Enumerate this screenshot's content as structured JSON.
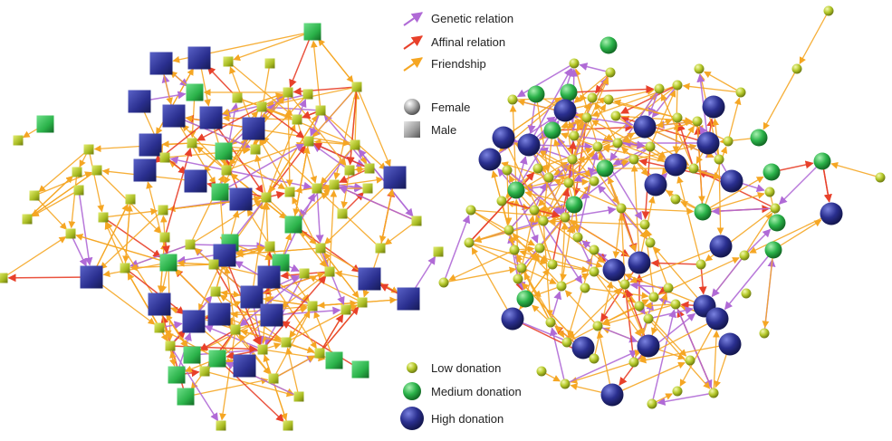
{
  "legend": {
    "edges": [
      {
        "label": "Genetic relation",
        "color": "#b06ad6"
      },
      {
        "label": "Affinal relation",
        "color": "#e8402a"
      },
      {
        "label": "Friendship",
        "color": "#f5a623"
      }
    ],
    "shapes": [
      {
        "label": "Female",
        "icon": "sphere-icon"
      },
      {
        "label": "Male",
        "icon": "cube-icon"
      }
    ],
    "donations": [
      {
        "label": "Low donation",
        "color": "#b5c92a"
      },
      {
        "label": "Medium donation",
        "color": "#2bb34a"
      },
      {
        "label": "High donation",
        "color": "#2a2f8f"
      }
    ]
  },
  "colors": {
    "low": "#b5c92a",
    "medium": "#2bb34a",
    "high": "#2a2f8f",
    "genetic": "#b06ad6",
    "affinal": "#e8402a",
    "friendship": "#f5a623"
  },
  "networks": [
    {
      "name": "male-network",
      "shape": "square"
    },
    {
      "name": "female-network",
      "shape": "circle"
    }
  ]
}
